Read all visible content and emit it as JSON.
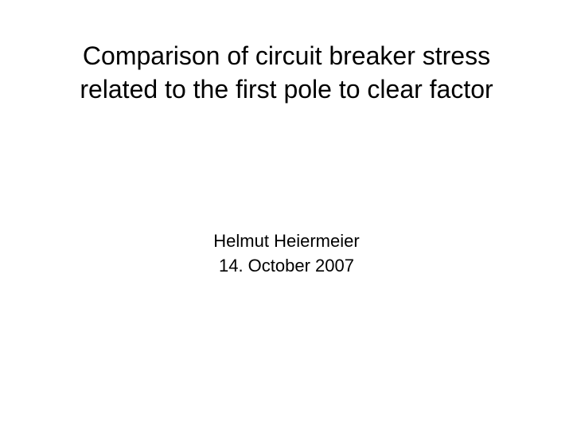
{
  "slide": {
    "title": "Comparison of circuit breaker stress related to the first pole to clear factor",
    "author": "Helmut Heiermeier",
    "date": "14. October 2007",
    "background_color": "#ffffff",
    "text_color": "#000000",
    "title_fontsize": 32,
    "subtitle_fontsize": 22,
    "font_family": "Arial, Helvetica, sans-serif"
  }
}
